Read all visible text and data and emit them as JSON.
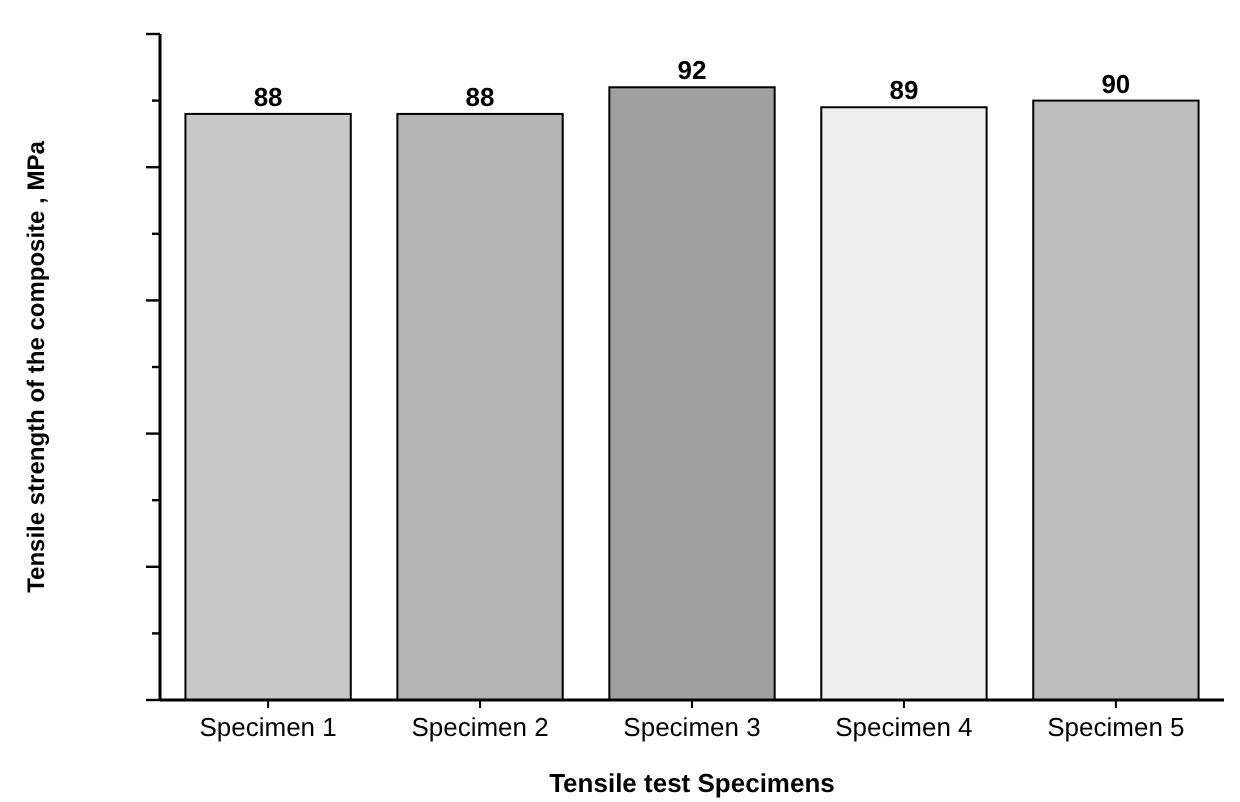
{
  "chart_data": {
    "type": "bar",
    "xlabel": "Tensile test Specimens",
    "ylabel": "Tensile strength of the composite , MPa",
    "categories": [
      "Specimen 1",
      "Specimen 2",
      "Specimen 3",
      "Specimen 4",
      "Specimen 5"
    ],
    "values": [
      88,
      88,
      92,
      89,
      90
    ],
    "colors": [
      "#c8c8c8",
      "#b4b4b4",
      "#a0a0a0",
      "#eeeeee",
      "#bdbdbd"
    ],
    "ylim": [
      0,
      100
    ],
    "yticks": [
      {
        "value": 0,
        "label": null
      },
      {
        "value": 10,
        "label": null
      },
      {
        "value": 20,
        "label": null
      },
      {
        "value": 30,
        "label": null
      },
      {
        "value": 40,
        "label": null
      },
      {
        "value": 50,
        "label": null
      },
      {
        "value": 60,
        "label": null
      },
      {
        "value": 70,
        "label": null
      },
      {
        "value": 80,
        "label": null
      },
      {
        "value": 90,
        "label": null
      },
      {
        "value": 100,
        "label": null
      }
    ],
    "tick_labels": "x",
    "data_labels": true
  }
}
